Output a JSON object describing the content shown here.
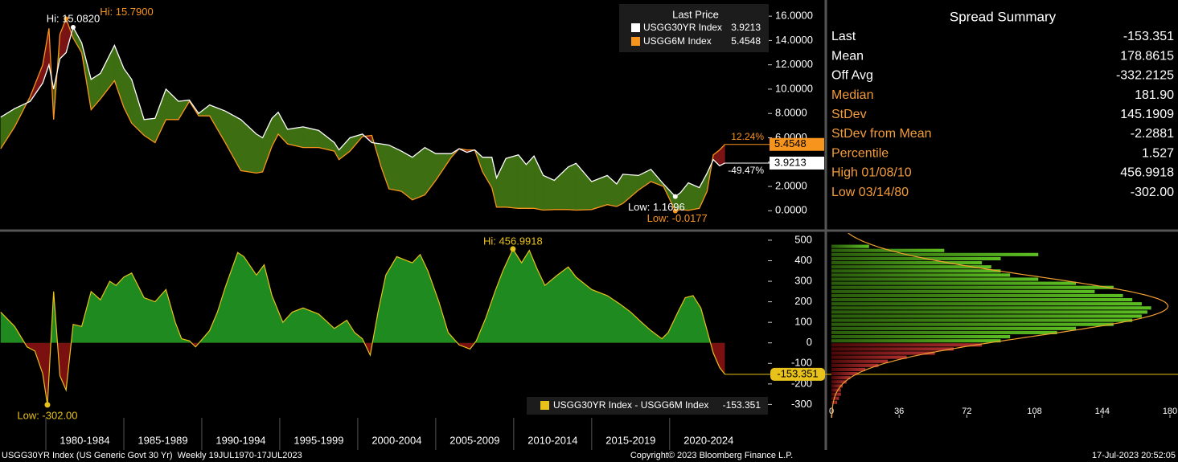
{
  "chart_data": [
    {
      "type": "line",
      "legend_title": "Last Price",
      "x": [
        1977.1,
        1978.0,
        1979.0,
        1979.8,
        1980.2,
        1980.5,
        1980.9,
        1981.3,
        1981.75,
        1982.3,
        1982.9,
        1983.5,
        1984.4,
        1985.0,
        1985.5,
        1986.3,
        1987.0,
        1987.7,
        1988.5,
        1989.2,
        1989.8,
        1990.5,
        1991.5,
        1992.5,
        1993.5,
        1993.9,
        1994.5,
        1994.9,
        1995.5,
        1996.5,
        1997.5,
        1998.5,
        1998.8,
        1999.5,
        2000.3,
        2000.9,
        2001.5,
        2002.0,
        2002.8,
        2003.5,
        2004.3,
        2005.0,
        2006.0,
        2006.5,
        2007.0,
        2007.5,
        2008.0,
        2008.6,
        2008.9,
        2009.5,
        2010.3,
        2010.8,
        2011.3,
        2011.9,
        2012.6,
        2013.5,
        2014.0,
        2015.0,
        2016.0,
        2016.6,
        2017.0,
        2018.0,
        2018.8,
        2019.6,
        2020.36,
        2020.7,
        2021.2,
        2021.9,
        2022.4,
        2022.8,
        2023.2,
        2023.54
      ],
      "series": [
        {
          "name": "USGG30YR Index",
          "color": "#ffffff",
          "last_label": "3.9213",
          "change_label": "-49.47%",
          "high_label": "Hi: 15.0820",
          "low_label": "Low: 1.1696",
          "values": [
            7.7,
            8.4,
            9.0,
            10.5,
            12.0,
            10.0,
            12.5,
            13.0,
            15.082,
            13.8,
            10.8,
            11.3,
            13.6,
            11.7,
            10.8,
            7.5,
            7.6,
            10.0,
            9.0,
            9.1,
            8.0,
            8.7,
            8.2,
            7.5,
            6.3,
            6.0,
            7.6,
            8.1,
            6.7,
            6.9,
            6.6,
            5.6,
            5.0,
            6.0,
            6.3,
            5.6,
            5.5,
            5.4,
            4.9,
            4.4,
            5.2,
            4.7,
            4.7,
            5.1,
            4.8,
            5.0,
            4.4,
            4.4,
            2.7,
            4.3,
            4.6,
            3.8,
            4.5,
            2.9,
            2.5,
            3.6,
            3.9,
            2.4,
            2.9,
            2.2,
            3.0,
            2.9,
            3.4,
            2.2,
            1.1696,
            1.5,
            2.3,
            1.9,
            3.1,
            4.2,
            3.7,
            3.9213
          ]
        },
        {
          "name": "USGG6M Index",
          "color": "#f7941d",
          "last_label": "5.4548",
          "change_label": "12.24%",
          "high_label": "Hi: 15.7900",
          "low_label": "Low: -0.0177",
          "values": [
            5.1,
            6.9,
            9.4,
            12.0,
            15.0,
            7.5,
            14.5,
            15.79,
            14.2,
            13.0,
            8.3,
            9.2,
            10.7,
            8.5,
            7.2,
            6.2,
            5.6,
            7.5,
            7.5,
            9.0,
            7.8,
            7.8,
            5.6,
            3.3,
            3.1,
            3.2,
            5.3,
            6.3,
            5.5,
            5.2,
            5.2,
            4.9,
            4.2,
            4.9,
            6.1,
            6.2,
            3.6,
            1.8,
            1.6,
            0.9,
            1.3,
            2.5,
            4.4,
            5.1,
            5.0,
            5.0,
            3.2,
            1.9,
            0.3,
            0.3,
            0.2,
            0.2,
            0.2,
            0.05,
            0.1,
            0.1,
            0.05,
            0.1,
            0.5,
            0.35,
            0.6,
            1.7,
            2.4,
            2.0,
            -0.0177,
            0.1,
            0.03,
            0.2,
            1.6,
            4.6,
            5.0,
            5.4548
          ]
        }
      ],
      "xlim": [
        1977.06,
        2026.3
      ],
      "ylim": [
        -1.5,
        17
      ],
      "yticks": [
        {
          "value": 0,
          "label": "0.0000"
        },
        {
          "value": 2,
          "label": "2.0000"
        },
        {
          "value": 4,
          "label": "4.0000"
        },
        {
          "value": 6,
          "label": "6.0000"
        },
        {
          "value": 8,
          "label": "8.0000"
        },
        {
          "value": 10,
          "label": "10.0000"
        },
        {
          "value": 12,
          "label": "12.0000"
        },
        {
          "value": 14,
          "label": "14.0000"
        },
        {
          "value": 16,
          "label": "16.0000"
        }
      ]
    },
    {
      "type": "area",
      "x": [
        1977.1,
        1978.0,
        1978.8,
        1979.3,
        1979.8,
        1980.1,
        1980.5,
        1980.9,
        1981.3,
        1981.75,
        1982.3,
        1982.9,
        1983.5,
        1984.1,
        1984.5,
        1985.0,
        1985.5,
        1986.3,
        1987.0,
        1987.7,
        1988.3,
        1988.7,
        1989.2,
        1989.6,
        1990.5,
        1991.0,
        1991.5,
        1992.3,
        1992.7,
        1993.5,
        1994.0,
        1994.5,
        1995.2,
        1995.8,
        1996.5,
        1997.5,
        1998.5,
        1999.3,
        1999.8,
        2000.3,
        2000.8,
        2001.3,
        2001.8,
        2002.5,
        2003.5,
        2004.0,
        2004.5,
        2005.2,
        2005.8,
        2006.5,
        2007.2,
        2007.6,
        2008.2,
        2008.8,
        2009.3,
        2009.95,
        2010.5,
        2011.0,
        2011.5,
        2012.0,
        2012.8,
        2013.5,
        2014.0,
        2015.0,
        2016.0,
        2016.8,
        2017.5,
        2018.2,
        2018.8,
        2019.5,
        2019.9,
        2020.6,
        2021.0,
        2021.5,
        2022.0,
        2022.4,
        2022.8,
        2023.2,
        2023.54
      ],
      "series": [
        {
          "name": "USGG30YR Index - USGG6M Index",
          "color": "#e8c21a",
          "last_label": "-153.351",
          "high_label": "Hi: 456.9918",
          "low_label": "Low: -302.00",
          "values": [
            150,
            80,
            -20,
            -40,
            -150,
            -302,
            250,
            -160,
            -230,
            90,
            80,
            250,
            210,
            300,
            280,
            320,
            340,
            220,
            200,
            260,
            100,
            20,
            10,
            -20,
            60,
            150,
            270,
            440,
            420,
            330,
            380,
            230,
            100,
            150,
            170,
            140,
            70,
            110,
            50,
            20,
            -60,
            150,
            330,
            420,
            390,
            430,
            350,
            200,
            50,
            -10,
            -30,
            10,
            120,
            250,
            350,
            456.9918,
            390,
            450,
            360,
            280,
            330,
            370,
            320,
            260,
            230,
            190,
            150,
            100,
            60,
            20,
            50,
            160,
            220,
            230,
            170,
            60,
            -50,
            -120,
            -153.351
          ]
        }
      ],
      "xlim": [
        1977.06,
        2026.3
      ],
      "ylim": [
        -365,
        535
      ],
      "yticks": [
        -300,
        -200,
        -100,
        0,
        100,
        200,
        300,
        400,
        500
      ],
      "periods": [
        {
          "label": "1980-1984",
          "from": 1980,
          "to": 1985
        },
        {
          "label": "1985-1989",
          "from": 1985,
          "to": 1990
        },
        {
          "label": "1990-1994",
          "from": 1990,
          "to": 1995
        },
        {
          "label": "1995-1999",
          "from": 1995,
          "to": 2000
        },
        {
          "label": "2000-2004",
          "from": 2000,
          "to": 2005
        },
        {
          "label": "2005-2009",
          "from": 2005,
          "to": 2010
        },
        {
          "label": "2010-2014",
          "from": 2010,
          "to": 2015
        },
        {
          "label": "2015-2019",
          "from": 2015,
          "to": 2020
        },
        {
          "label": "2020-2024",
          "from": 2020,
          "to": 2025
        }
      ]
    },
    {
      "type": "histogram",
      "bins": [
        -300,
        -280,
        -260,
        -240,
        -220,
        -200,
        -180,
        -160,
        -140,
        -120,
        -100,
        -80,
        -60,
        -40,
        -20,
        0,
        20,
        40,
        60,
        80,
        100,
        120,
        140,
        160,
        180,
        200,
        220,
        240,
        260,
        280,
        300,
        320,
        340,
        360,
        380,
        400,
        420,
        440,
        460,
        480
      ],
      "values": [
        3,
        4,
        5,
        5,
        6,
        8,
        10,
        14,
        18,
        25,
        30,
        40,
        55,
        65,
        80,
        90,
        95,
        120,
        130,
        150,
        160,
        165,
        168,
        170,
        165,
        160,
        155,
        140,
        150,
        130,
        110,
        95,
        90,
        85,
        80,
        90,
        110,
        60,
        20
      ],
      "color": "#4fa61c",
      "negative_color": "#a02222",
      "curve_color": "#f0a030",
      "xlim": [
        0,
        180
      ],
      "xticks": [
        0,
        36,
        72,
        108,
        144,
        180
      ]
    }
  ],
  "summary": {
    "title": "Spread Summary",
    "rows": [
      {
        "label": "Last",
        "value": "-153.351",
        "color": "#ffffff"
      },
      {
        "label": "Mean",
        "value": "178.8615",
        "color": "#ffffff"
      },
      {
        "label": "Off Avg",
        "value": "-332.2125",
        "color": "#ffffff"
      },
      {
        "label": "Median",
        "value": "181.90",
        "color": "#f39c3a"
      },
      {
        "label": "StDev",
        "value": "145.1909",
        "color": "#f39c3a"
      },
      {
        "label": "StDev from Mean",
        "value": "-2.2881",
        "color": "#f39c3a"
      },
      {
        "label": "Percentile",
        "value": "1.527",
        "color": "#f39c3a"
      },
      {
        "label": "High 01/08/10",
        "value": "456.9918",
        "color": "#f39c3a"
      },
      {
        "label": "Low 03/14/80",
        "value": "-302.00",
        "color": "#f39c3a"
      }
    ]
  },
  "footer": {
    "left": "USGG30YR Index (US Generic Govt 30 Yr)  Weekly 19JUL1970-17JUL2023",
    "center": "Copyright© 2023 Bloomberg Finance L.P.",
    "right": "17-Jul-2023 20:52:05"
  }
}
